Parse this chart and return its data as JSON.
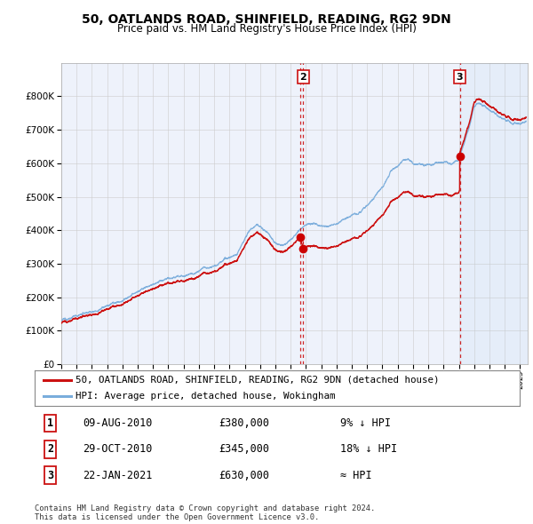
{
  "title": "50, OATLANDS ROAD, SHINFIELD, READING, RG2 9DN",
  "subtitle": "Price paid vs. HM Land Registry's House Price Index (HPI)",
  "legend_line1": "50, OATLANDS ROAD, SHINFIELD, READING, RG2 9DN (detached house)",
  "legend_line2": "HPI: Average price, detached house, Wokingham",
  "transactions": [
    {
      "num": 1,
      "date": "09-AUG-2010",
      "price": 380000,
      "label": "9% ↓ HPI",
      "x_year": 2010.61
    },
    {
      "num": 2,
      "date": "29-OCT-2010",
      "price": 345000,
      "label": "18% ↓ HPI",
      "x_year": 2010.83
    },
    {
      "num": 3,
      "date": "22-JAN-2021",
      "price": 630000,
      "label": "≈ HPI",
      "x_year": 2021.06
    }
  ],
  "footer": "Contains HM Land Registry data © Crown copyright and database right 2024.\nThis data is licensed under the Open Government Licence v3.0.",
  "ylim": [
    0,
    900000
  ],
  "xlim_start": 1995.0,
  "xlim_end": 2025.5,
  "hpi_color": "#7aaddc",
  "price_color": "#cc1111",
  "bg_color": "#eef2fb",
  "marker_color": "#cc0000",
  "vline_color": "#cc1111",
  "shade_color": "#d0e0f0",
  "grid_color": "#cccccc"
}
